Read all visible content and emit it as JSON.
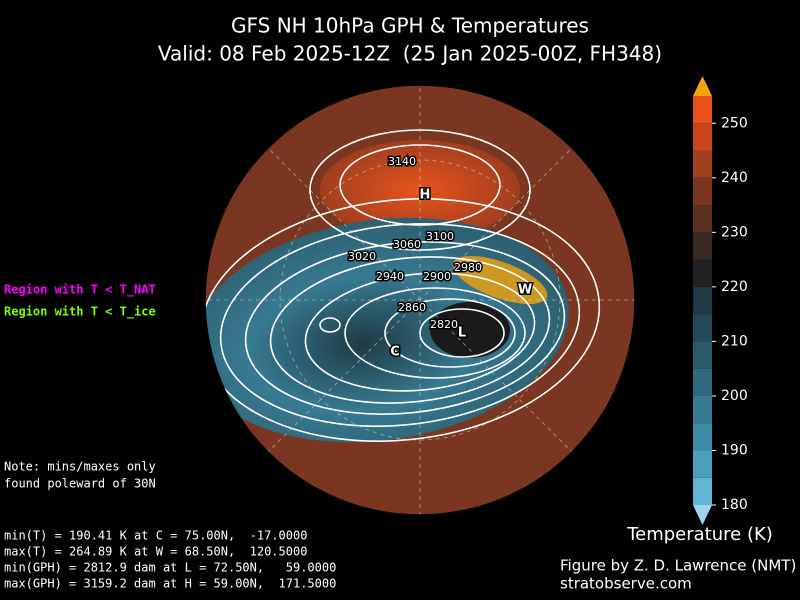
{
  "header": {
    "title": "GFS NH 10hPa GPH & Temperatures",
    "subtitle": "Valid: 08 Feb 2025-12Z  (25 Jan 2025-00Z, FH348)"
  },
  "legend": [
    {
      "label": "Region with T < T_NAT",
      "color": "#ff00ff"
    },
    {
      "label": "Region with T < T_ice",
      "color": "#7fff00"
    }
  ],
  "note": [
    "Note: mins/maxes only",
    "found poleward of 30N"
  ],
  "stats": [
    "min(T) = 190.41 K at C = 75.00N,  -17.0000",
    "max(T) = 264.89 K at W = 68.50N,  120.5000",
    "min(GPH) = 2812.9 dam at L = 72.50N,   59.0000",
    "max(GPH) = 3159.2 dam at H = 59.00N,  171.5000"
  ],
  "colorbar": {
    "label": "Temperature (K)",
    "lim": [
      180,
      255
    ],
    "ticks": [
      180,
      190,
      200,
      210,
      220,
      230,
      240,
      250
    ],
    "colors": [
      "#5fb4d4",
      "#4a9fbd",
      "#3c8aa6",
      "#377a91",
      "#316a7e",
      "#2b5a6a",
      "#254a57",
      "#1f3a44",
      "#222222",
      "#3a2a22",
      "#5a3020",
      "#7a3620",
      "#a03e1e",
      "#c8461c",
      "#e8541c"
    ],
    "under_color": "#9fd5ea",
    "over_color": "#f5a30a"
  },
  "contour_labels": [
    3140,
    3100,
    3060,
    3020,
    2980,
    2940,
    2900,
    2860,
    2820
  ],
  "markers": [
    "H",
    "L",
    "C",
    "W"
  ],
  "credits": [
    "Figure by Z. D. Lawrence (NMT)",
    "stratobserve.com"
  ]
}
